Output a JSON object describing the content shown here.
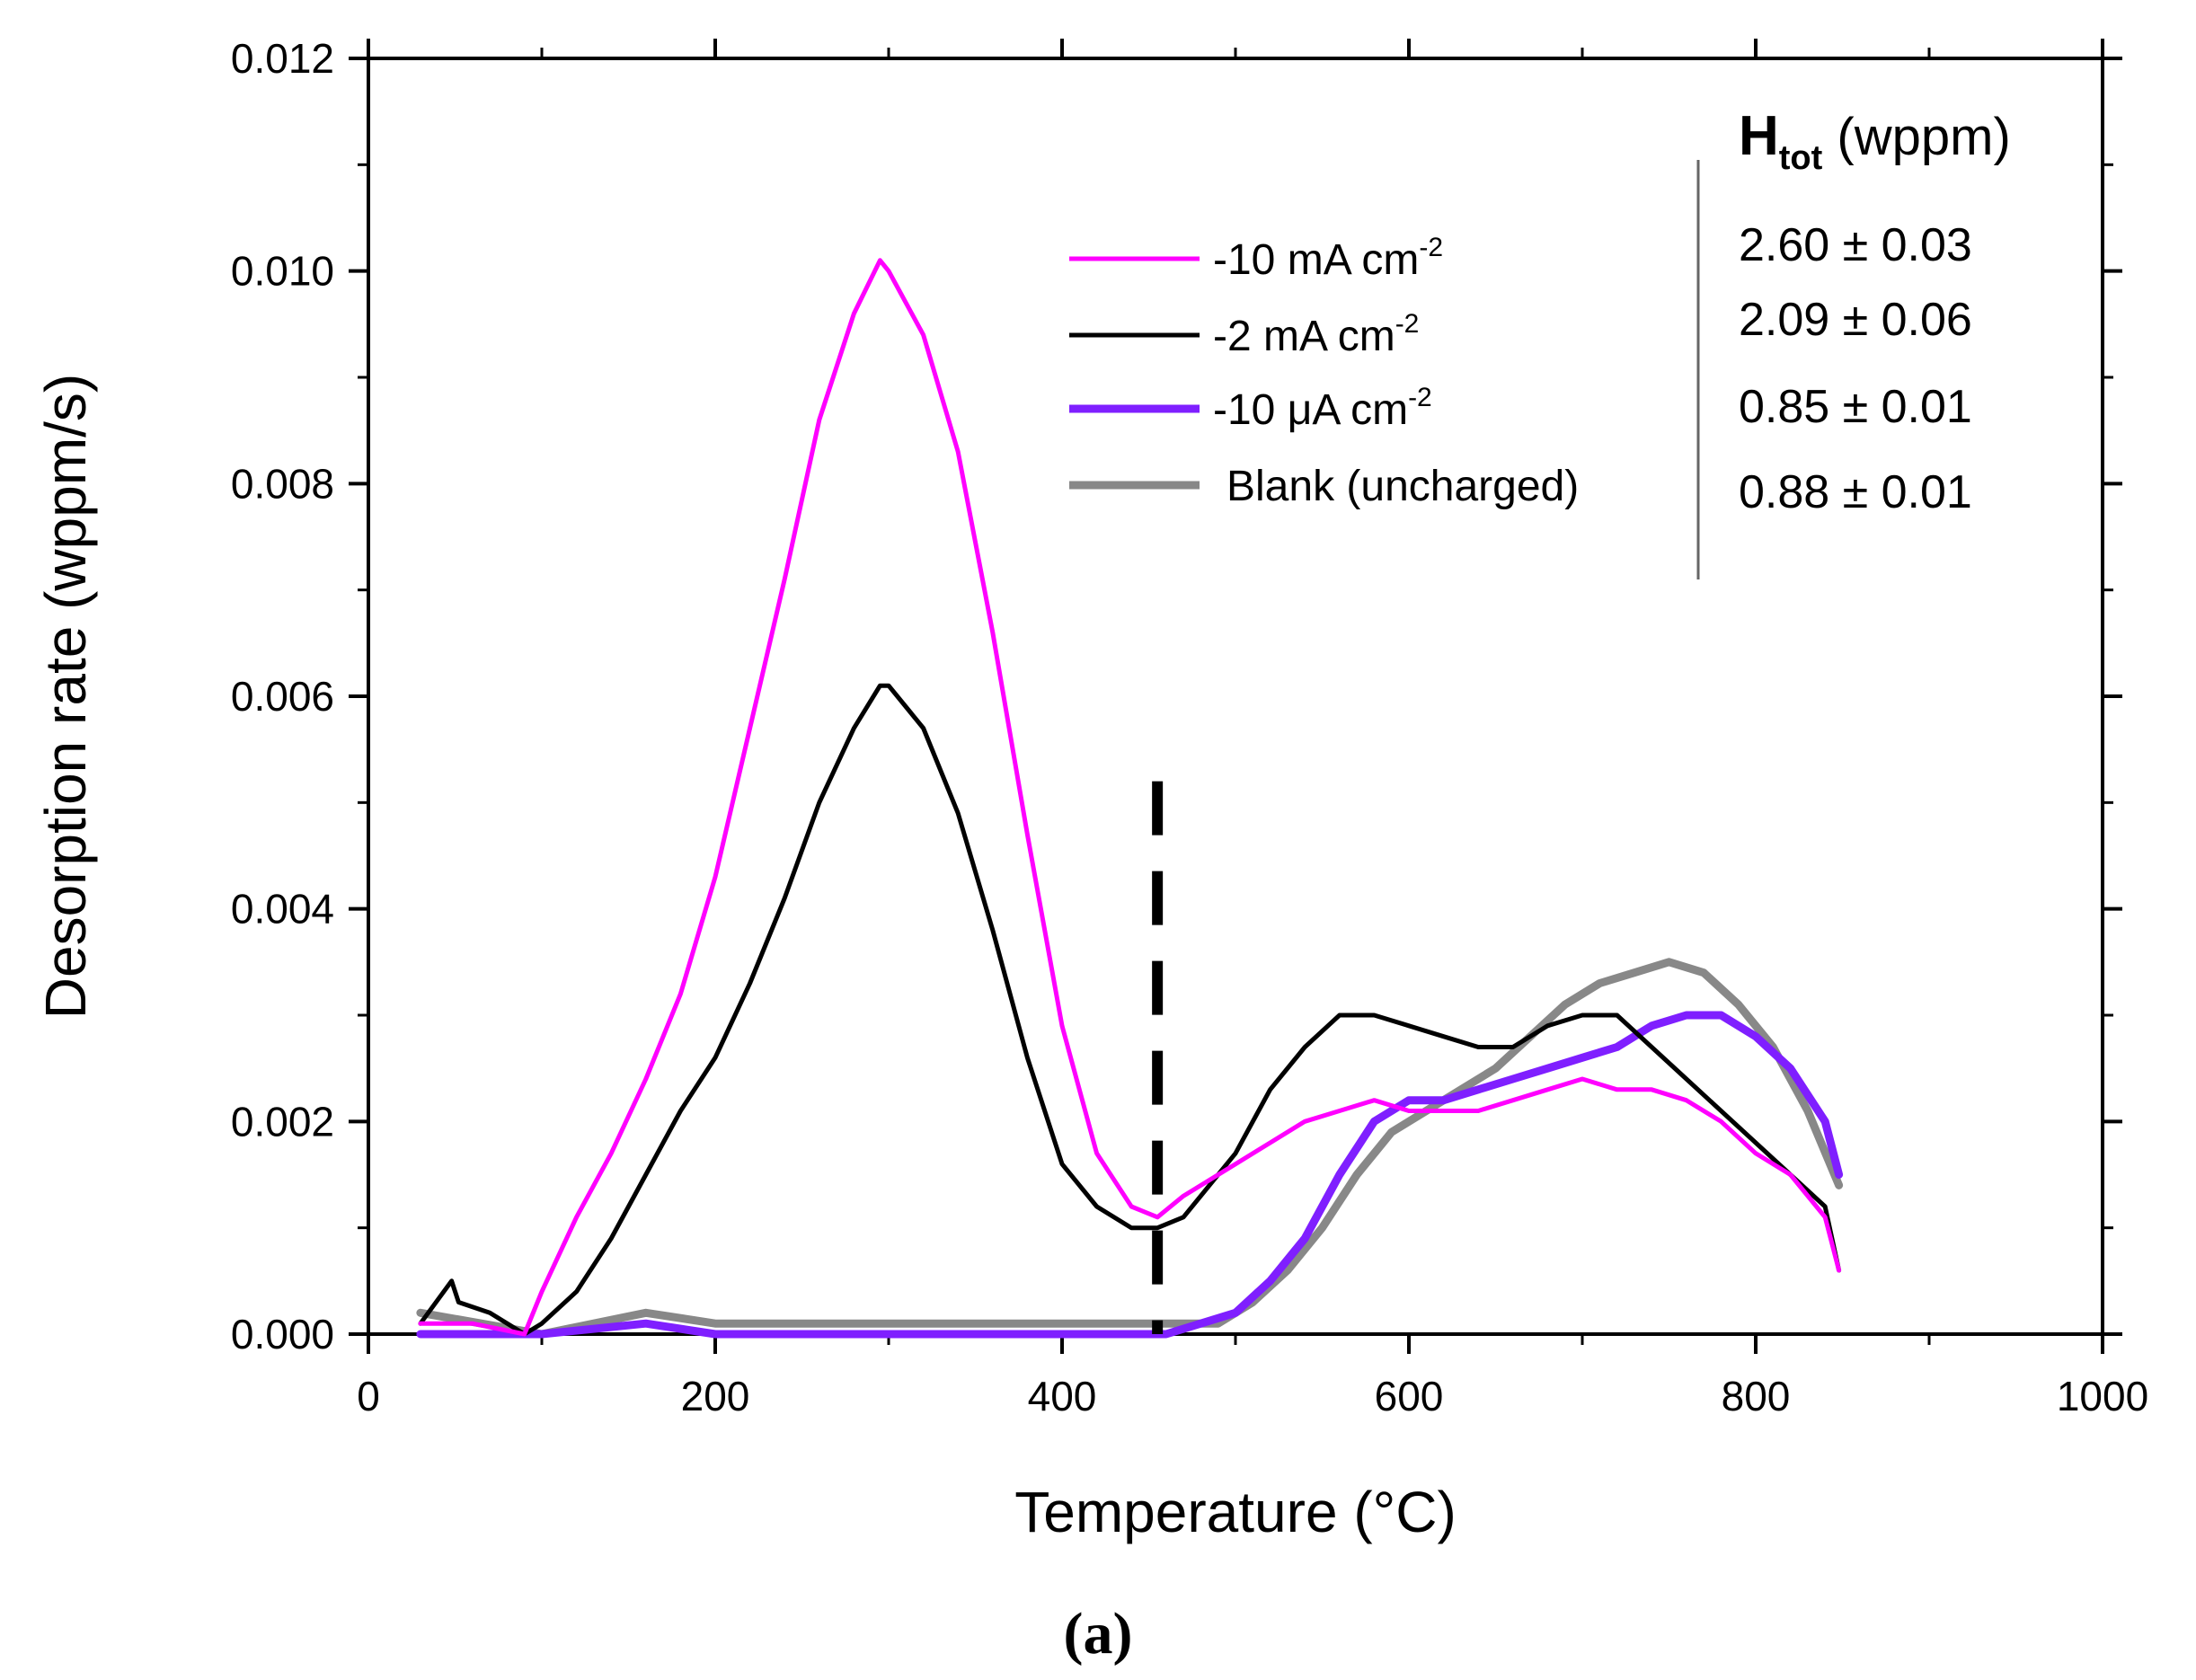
{
  "chart_data": {
    "type": "line",
    "title": "",
    "xlabel": "Temperature (°C)",
    "ylabel": "Desorption rate (wppm/s)",
    "xlim": [
      0,
      1000
    ],
    "ylim": [
      0,
      0.012
    ],
    "xticks": [
      "0",
      "200",
      "400",
      "600",
      "800",
      "1000"
    ],
    "yticks": [
      "0.000",
      "0.002",
      "0.004",
      "0.006",
      "0.008",
      "0.010",
      "0.012"
    ],
    "grid": false,
    "legend_position": "top-center",
    "series": [
      {
        "name": "-10 mA cm",
        "name_sup": "-2",
        "color": "#ff00ff",
        "x": [
          30,
          60,
          90,
          100,
          120,
          140,
          160,
          180,
          200,
          220,
          240,
          260,
          280,
          295,
          300,
          320,
          340,
          360,
          380,
          400,
          420,
          440,
          455,
          470,
          500,
          520,
          540,
          560,
          580,
          600,
          620,
          640,
          660,
          680,
          700,
          720,
          740,
          760,
          780,
          800,
          820,
          840,
          848
        ],
        "y": [
          0.0001,
          0.0001,
          0.0,
          0.0004,
          0.0011,
          0.0017,
          0.0024,
          0.0032,
          0.0043,
          0.0057,
          0.0071,
          0.0086,
          0.0096,
          0.0101,
          0.01,
          0.0094,
          0.0083,
          0.0066,
          0.0047,
          0.0029,
          0.0017,
          0.0012,
          0.0011,
          0.0013,
          0.0016,
          0.0018,
          0.002,
          0.0021,
          0.0022,
          0.0021,
          0.0021,
          0.0021,
          0.0022,
          0.0023,
          0.0024,
          0.0023,
          0.0023,
          0.0022,
          0.002,
          0.0017,
          0.0015,
          0.0011,
          0.0006
        ]
      },
      {
        "name": "-2 mA cm",
        "name_sup": "-2",
        "color": "#000000",
        "x": [
          30,
          48,
          52,
          70,
          90,
          100,
          120,
          140,
          160,
          180,
          200,
          220,
          240,
          260,
          280,
          295,
          300,
          320,
          340,
          360,
          380,
          400,
          420,
          440,
          455,
          470,
          500,
          520,
          540,
          560,
          580,
          600,
          620,
          640,
          660,
          680,
          700,
          720,
          740,
          760,
          780,
          800,
          820,
          840,
          848
        ],
        "y": [
          0.0001,
          0.0005,
          0.0003,
          0.0002,
          0.0,
          0.0001,
          0.0004,
          0.0009,
          0.0015,
          0.0021,
          0.0026,
          0.0033,
          0.0041,
          0.005,
          0.0057,
          0.0061,
          0.0061,
          0.0057,
          0.0049,
          0.0038,
          0.0026,
          0.0016,
          0.0012,
          0.001,
          0.001,
          0.0011,
          0.0017,
          0.0023,
          0.0027,
          0.003,
          0.003,
          0.0029,
          0.0028,
          0.0027,
          0.0027,
          0.0029,
          0.003,
          0.003,
          0.0027,
          0.0024,
          0.0021,
          0.0018,
          0.0015,
          0.0012,
          0.0006
        ]
      },
      {
        "name": "-10 μA cm",
        "name_sup": "-2",
        "color": "#7f1fff",
        "x": [
          30,
          100,
          160,
          200,
          300,
          400,
          460,
          480,
          500,
          520,
          540,
          560,
          580,
          600,
          620,
          640,
          660,
          680,
          700,
          720,
          740,
          760,
          780,
          800,
          820,
          840,
          848
        ],
        "y": [
          0.0,
          0.0,
          0.0001,
          0.0,
          0.0,
          0.0,
          0.0,
          0.0001,
          0.0002,
          0.0005,
          0.0009,
          0.0015,
          0.002,
          0.0022,
          0.0022,
          0.0023,
          0.0024,
          0.0025,
          0.0026,
          0.0027,
          0.0029,
          0.003,
          0.003,
          0.0028,
          0.0025,
          0.002,
          0.0015
        ]
      },
      {
        "name": "Blank (uncharged)",
        "name_sup": "",
        "color": "#888888",
        "x": [
          30,
          100,
          160,
          200,
          300,
          400,
          460,
          490,
          510,
          530,
          550,
          570,
          590,
          610,
          630,
          650,
          670,
          690,
          710,
          730,
          750,
          770,
          790,
          810,
          830,
          848
        ],
        "y": [
          0.0002,
          0.0,
          0.0002,
          0.0001,
          0.0001,
          0.0001,
          0.0001,
          0.0001,
          0.0003,
          0.0006,
          0.001,
          0.0015,
          0.0019,
          0.0021,
          0.0023,
          0.0025,
          0.0028,
          0.0031,
          0.0033,
          0.0034,
          0.0035,
          0.0034,
          0.0031,
          0.0027,
          0.0021,
          0.0014
        ]
      }
    ],
    "annotations": {
      "vertical_dashed_line_x": 455,
      "vertical_dashed_line_ymax": 0.0052
    }
  },
  "htot_table": {
    "header_main": "H",
    "header_sub": "tot",
    "header_unit": " (wppm)",
    "rows": [
      "2.60 ± 0.03",
      "2.09 ± 0.06",
      "0.85 ± 0.01",
      "0.88 ± 0.01"
    ]
  },
  "panel_label": "(a)"
}
